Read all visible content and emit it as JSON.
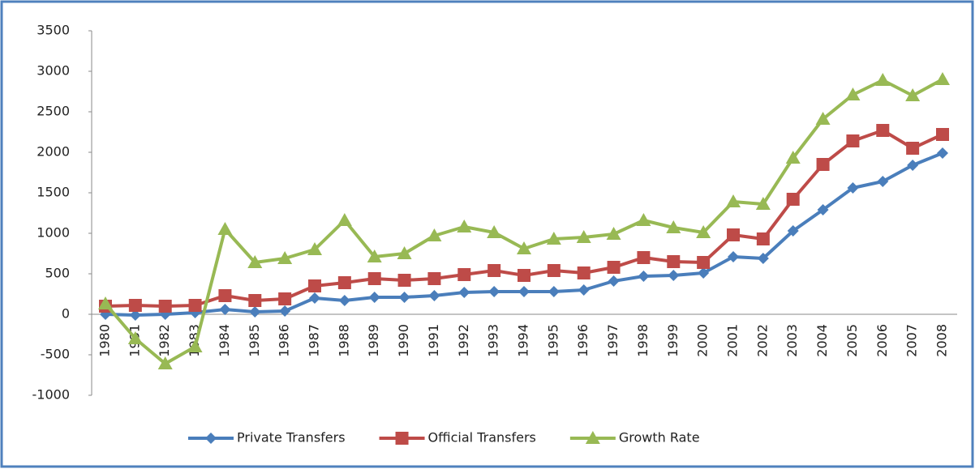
{
  "chart_data": {
    "type": "line",
    "categories": [
      "1980",
      "1981",
      "1982",
      "1983",
      "1984",
      "1985",
      "1986",
      "1987",
      "1988",
      "1989",
      "1990",
      "1991",
      "1992",
      "1993",
      "1994",
      "1995",
      "1996",
      "1997",
      "1998",
      "1999",
      "2000",
      "2001",
      "2002",
      "2003",
      "2004",
      "2005",
      "2006",
      "2007",
      "2008"
    ],
    "series": [
      {
        "name": "Private Transfers",
        "color": "#4a7ebb",
        "marker": "diamond",
        "values": [
          0,
          -10,
          0,
          20,
          60,
          30,
          40,
          200,
          170,
          210,
          210,
          230,
          270,
          280,
          280,
          280,
          300,
          410,
          470,
          480,
          510,
          710,
          690,
          1030,
          1290,
          1560,
          1640,
          1840,
          1990
        ]
      },
      {
        "name": "Official Transfers",
        "color": "#be4b48",
        "marker": "square",
        "values": [
          100,
          110,
          100,
          110,
          230,
          170,
          190,
          350,
          390,
          440,
          420,
          440,
          490,
          540,
          480,
          540,
          510,
          580,
          700,
          650,
          640,
          980,
          930,
          1420,
          1850,
          2140,
          2270,
          2050,
          2220
        ]
      },
      {
        "name": "Growth Rate",
        "color": "#98b954",
        "marker": "triangle",
        "values": [
          130,
          -300,
          -610,
          -400,
          1050,
          640,
          690,
          800,
          1160,
          710,
          750,
          970,
          1080,
          1010,
          810,
          930,
          950,
          990,
          1160,
          1070,
          1010,
          1390,
          1360,
          1930,
          2410,
          2710,
          2890,
          2700,
          2900
        ]
      }
    ],
    "ylim": [
      -1000,
      3500
    ],
    "yticks": [
      -1000,
      -500,
      0,
      500,
      1000,
      1500,
      2000,
      2500,
      3000,
      3500
    ],
    "grid": false,
    "legend": "bottom"
  }
}
